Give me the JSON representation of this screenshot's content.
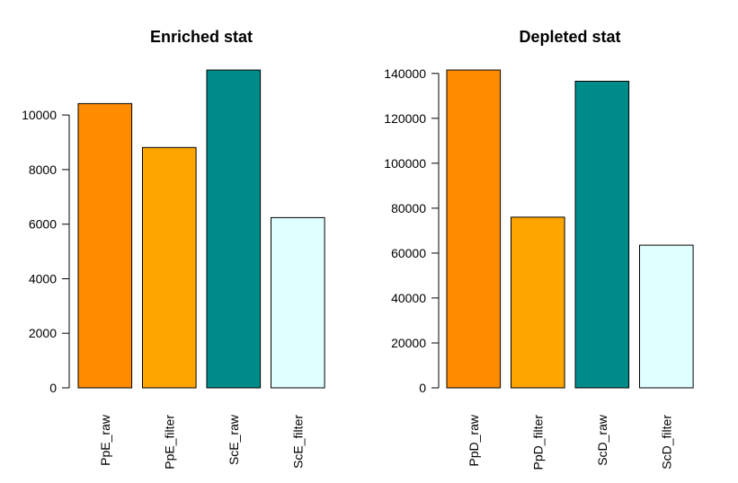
{
  "chart_data": [
    {
      "type": "bar",
      "title": "Enriched stat",
      "categories": [
        "PpE_raw",
        "PpE_filter",
        "ScE_raw",
        "ScE_filter"
      ],
      "values": [
        10420,
        8810,
        11650,
        6240
      ],
      "colors": [
        "#ff8c00",
        "#ffa500",
        "#008b8b",
        "#e0ffff"
      ],
      "yticks": [
        0,
        2000,
        4000,
        6000,
        8000,
        10000
      ],
      "ylim": [
        0,
        11650
      ],
      "grid": false
    },
    {
      "type": "bar",
      "title": "Depleted stat",
      "categories": [
        "PpD_raw",
        "PpD_filter",
        "ScD_raw",
        "ScD_filter"
      ],
      "values": [
        141500,
        76000,
        136500,
        63500
      ],
      "colors": [
        "#ff8c00",
        "#ffa500",
        "#008b8b",
        "#e0ffff"
      ],
      "yticks": [
        0,
        20000,
        40000,
        60000,
        80000,
        100000,
        120000,
        140000
      ],
      "ylim": [
        0,
        141500
      ],
      "grid": false
    }
  ]
}
